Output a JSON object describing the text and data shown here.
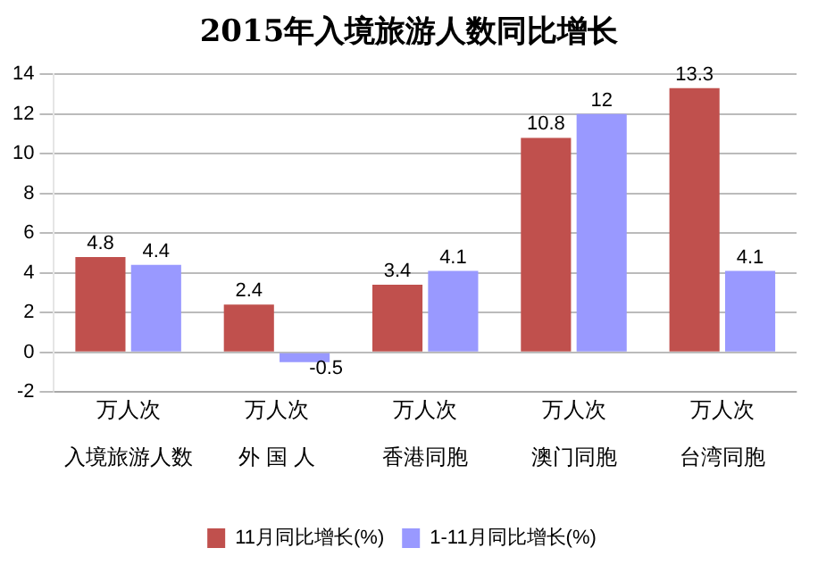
{
  "chart_data": {
    "type": "bar",
    "title": "2015年入境旅游人数同比增长",
    "categories": [
      "入境旅游人数",
      "外 国 人",
      "香港同胞",
      "澳门同胞",
      "台湾同胞"
    ],
    "annotations": [
      "万人次",
      "万人次",
      "万人次",
      "万人次",
      "万人次"
    ],
    "series": [
      {
        "name": "11月同比增长(%)",
        "color": "#c0504d",
        "values": [
          4.8,
          2.4,
          3.4,
          10.8,
          13.3
        ]
      },
      {
        "name": "1-11月同比增长(%)",
        "color": "#9999ff",
        "values": [
          4.4,
          -0.5,
          4.1,
          12,
          4.1
        ]
      }
    ],
    "ylim": [
      -2,
      14
    ],
    "yticks": [
      -2,
      0,
      2,
      4,
      6,
      8,
      10,
      12,
      14
    ],
    "grid": "y",
    "legend": "bottom",
    "data_labels": true
  }
}
